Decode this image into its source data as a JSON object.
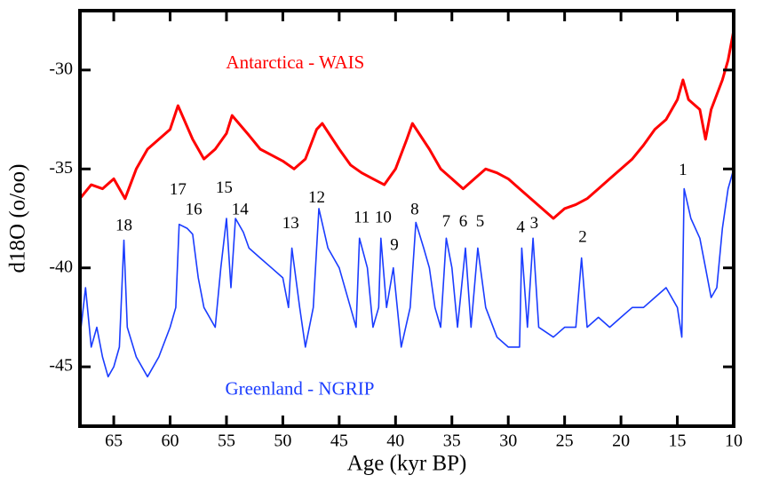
{
  "chart_data": {
    "type": "line",
    "xlabel": "Age (kyr BP)",
    "ylabel": "d18O (o/oo)",
    "xlim": [
      68,
      10
    ],
    "xticks": [
      65,
      60,
      55,
      50,
      45,
      40,
      35,
      30,
      25,
      20,
      15,
      10
    ],
    "ylim": [
      -48,
      -27
    ],
    "yticks": [
      -30,
      -35,
      -40,
      -45
    ],
    "series": [
      {
        "name": "Antarctica - WAIS",
        "color": "#ff0000",
        "label_at": {
          "x": 48.9,
          "y": -29.7
        },
        "x": [
          68,
          67,
          66,
          65,
          64,
          63,
          62,
          61,
          60,
          59.3,
          58,
          57,
          56,
          55,
          54.5,
          53,
          52,
          51,
          50,
          49,
          48,
          47,
          46.5,
          45,
          44,
          43,
          42,
          41,
          40,
          39,
          38.5,
          37,
          36,
          35,
          34,
          33,
          32,
          31,
          30,
          29,
          28,
          27,
          26,
          25,
          24,
          23,
          22,
          21,
          20,
          19,
          18,
          17,
          16,
          15,
          14.5,
          14,
          13,
          12.5,
          12,
          11,
          10.5,
          10
        ],
        "values": [
          -36.5,
          -35.8,
          -36,
          -35.5,
          -36.5,
          -35,
          -34,
          -33.5,
          -33,
          -31.8,
          -33.5,
          -34.5,
          -34,
          -33.2,
          -32.3,
          -33.3,
          -34,
          -34.3,
          -34.6,
          -35,
          -34.5,
          -33,
          -32.7,
          -34,
          -34.8,
          -35.2,
          -35.5,
          -35.8,
          -35,
          -33.5,
          -32.7,
          -34,
          -35,
          -35.5,
          -36,
          -35.5,
          -35,
          -35.2,
          -35.5,
          -36,
          -36.5,
          -37,
          -37.5,
          -37,
          -36.8,
          -36.5,
          -36,
          -35.5,
          -35,
          -34.5,
          -33.8,
          -33,
          -32.5,
          -31.5,
          -30.5,
          -31.5,
          -32,
          -33.5,
          -32,
          -30.5,
          -29.5,
          -28
        ]
      },
      {
        "name": "Greenland - NGRIP",
        "color": "#1a3cff",
        "label_at": {
          "x": 48.5,
          "y": -46.2
        },
        "x": [
          68,
          67.5,
          67,
          66.5,
          66,
          65.5,
          65,
          64.5,
          64.1,
          63.8,
          63,
          62,
          61,
          60,
          59.5,
          59.2,
          58.5,
          58,
          57.5,
          57,
          56,
          55.5,
          55,
          54.6,
          54.2,
          53.5,
          53,
          52,
          51,
          50,
          49.5,
          49.2,
          48.5,
          48,
          47.3,
          46.8,
          46,
          45,
          44,
          43.5,
          43.2,
          42.5,
          42,
          41.5,
          41.3,
          40.8,
          40.2,
          39.5,
          38.7,
          38.2,
          37.5,
          37,
          36.5,
          36,
          35.5,
          35,
          34.5,
          33.8,
          33.3,
          32.7,
          32,
          31,
          30,
          29,
          28.8,
          28.3,
          27.8,
          27.3,
          26,
          25,
          24,
          23.5,
          23,
          22,
          21,
          20,
          19,
          18,
          17,
          16,
          15,
          14.6,
          14.4,
          13.8,
          13,
          12.5,
          12,
          11.5,
          11,
          10.5,
          10
        ],
        "values": [
          -43.5,
          -41,
          -44,
          -43,
          -44.5,
          -45.5,
          -45,
          -44,
          -38.6,
          -43,
          -44.5,
          -45.5,
          -44.5,
          -43,
          -42,
          -37.8,
          -38,
          -38.3,
          -40.5,
          -42,
          -43,
          -40,
          -37.5,
          -41,
          -37.5,
          -38.2,
          -39,
          -39.5,
          -40,
          -40.5,
          -42,
          -39,
          -42,
          -44,
          -42,
          -37,
          -39,
          -40,
          -42,
          -43,
          -38.5,
          -40,
          -43,
          -42,
          -38.5,
          -42,
          -40,
          -44,
          -42,
          -37.7,
          -39,
          -40,
          -42,
          -43,
          -38.5,
          -40,
          -43,
          -39,
          -43,
          -39,
          -42,
          -43.5,
          -44,
          -44,
          -39,
          -43,
          -38.5,
          -43,
          -43.5,
          -43,
          -43,
          -39.5,
          -43,
          -42.5,
          -43,
          -42.5,
          -42,
          -42,
          -41.5,
          -41,
          -42,
          -43.5,
          -36,
          -37.5,
          -38.5,
          -40,
          -41.5,
          -41,
          -38,
          -36,
          -35
        ]
      }
    ],
    "annotations": [
      {
        "text": "18",
        "x": 64.1,
        "y": -37.9
      },
      {
        "text": "17",
        "x": 59.3,
        "y": -36.1
      },
      {
        "text": "16",
        "x": 57.9,
        "y": -37.1
      },
      {
        "text": "15",
        "x": 55.2,
        "y": -36.0
      },
      {
        "text": "14",
        "x": 53.8,
        "y": -37.1
      },
      {
        "text": "13",
        "x": 49.3,
        "y": -37.8
      },
      {
        "text": "12",
        "x": 47.0,
        "y": -36.5
      },
      {
        "text": "11",
        "x": 43.0,
        "y": -37.5
      },
      {
        "text": "10",
        "x": 41.1,
        "y": -37.5
      },
      {
        "text": "9",
        "x": 40.1,
        "y": -38.9
      },
      {
        "text": "8",
        "x": 38.3,
        "y": -37.1
      },
      {
        "text": "7",
        "x": 35.5,
        "y": -37.7
      },
      {
        "text": "6",
        "x": 34.0,
        "y": -37.7
      },
      {
        "text": "5",
        "x": 32.5,
        "y": -37.7
      },
      {
        "text": "4",
        "x": 28.9,
        "y": -38.0
      },
      {
        "text": "3",
        "x": 27.7,
        "y": -37.8
      },
      {
        "text": "2",
        "x": 23.4,
        "y": -38.5
      },
      {
        "text": "1",
        "x": 14.5,
        "y": -35.1
      }
    ]
  }
}
